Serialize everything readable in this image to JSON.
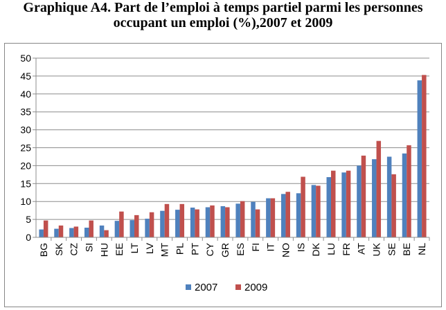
{
  "title_line1": "Graphique A4. Part de l’emploi à temps partiel parmi les personnes",
  "title_line2": "occupant un emploi (%),2007 et 2009",
  "chart_data": {
    "type": "bar",
    "title": "Graphique A4. Part de l’emploi à temps partiel parmi les personnes occupant un emploi (%),2007 et 2009",
    "categories": [
      "BG",
      "SK",
      "CZ",
      "SI",
      "HU",
      "EE",
      "LT",
      "LV",
      "MT",
      "PL",
      "PT",
      "CY",
      "GR",
      "ES",
      "FI",
      "IT",
      "NO",
      "IS",
      "DK",
      "LU",
      "FR",
      "AT",
      "UK",
      "SE",
      "BE",
      "NL"
    ],
    "series": [
      {
        "name": "2007",
        "color": "#4f81bd",
        "values": [
          2.2,
          2.4,
          2.6,
          2.7,
          3.3,
          4.6,
          4.8,
          5.2,
          7.4,
          7.7,
          8.3,
          8.4,
          8.7,
          9.4,
          9.9,
          10.9,
          12.1,
          12.3,
          14.6,
          16.8,
          18.1,
          20.0,
          21.8,
          22.5,
          23.4,
          43.8
        ]
      },
      {
        "name": "2009",
        "color": "#c0504d",
        "values": [
          4.7,
          3.3,
          3.0,
          4.7,
          2.0,
          7.2,
          6.2,
          7.0,
          9.3,
          9.3,
          7.8,
          8.9,
          8.4,
          10.1,
          7.8,
          10.9,
          12.7,
          16.9,
          14.4,
          18.6,
          18.6,
          22.8,
          26.9,
          17.6,
          25.7,
          45.3
        ]
      }
    ],
    "ylim": [
      0,
      50
    ],
    "yticks": [
      0,
      5,
      10,
      15,
      20,
      25,
      30,
      35,
      40,
      45,
      50
    ],
    "grid": true,
    "legend": "bottom"
  }
}
